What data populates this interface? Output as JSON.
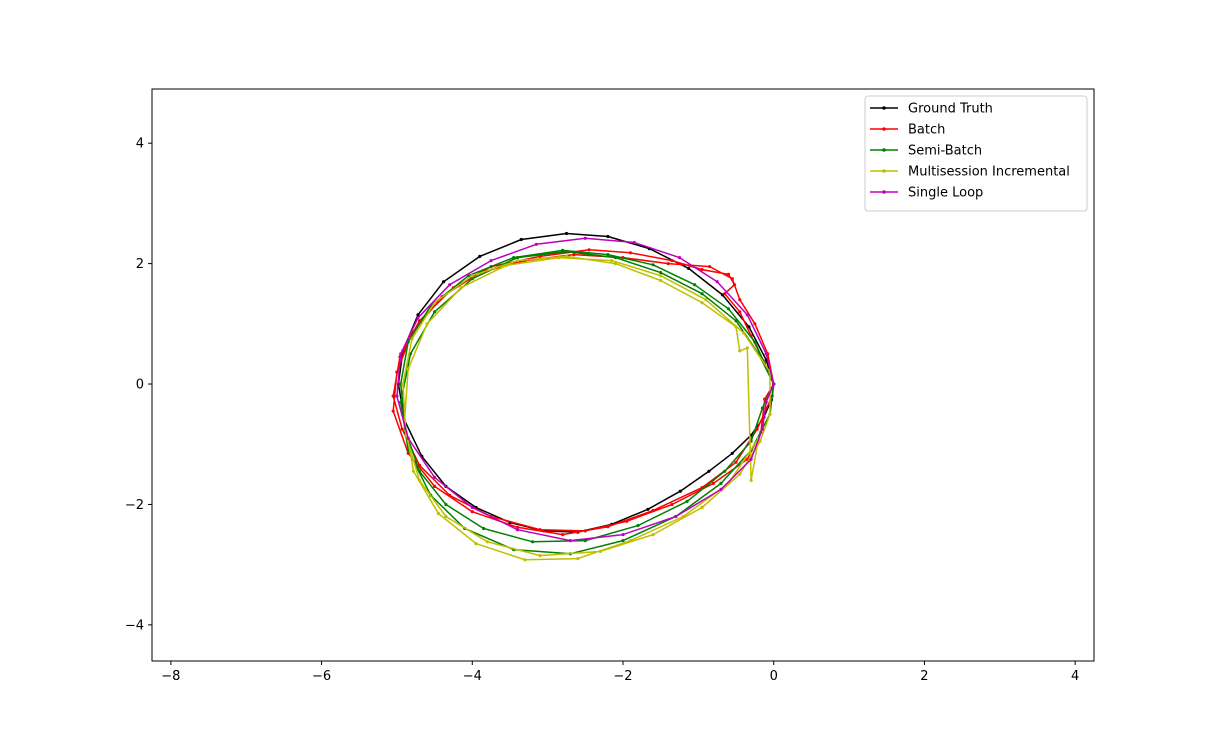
{
  "chart_data": {
    "type": "line",
    "title": "",
    "xlabel": "",
    "ylabel": "",
    "xlim": [
      -8.25,
      4.25
    ],
    "ylim": [
      -4.6,
      4.9
    ],
    "xticks": [
      -8,
      -6,
      -4,
      -2,
      0,
      2,
      4
    ],
    "yticks": [
      -4,
      -2,
      0,
      2,
      4
    ],
    "xtick_labels": [
      "−8",
      "−6",
      "−4",
      "−2",
      "0",
      "2",
      "4"
    ],
    "ytick_labels": [
      "−4",
      "−2",
      "0",
      "2",
      "4"
    ],
    "grid": false,
    "legend_position": "top-right",
    "series": [
      {
        "name": "Ground Truth",
        "color": "#000000",
        "marker": "dot",
        "points": [
          [
            0,
            0
          ],
          [
            -0.03,
            -0.26
          ],
          [
            -0.13,
            -0.55
          ],
          [
            -0.3,
            -0.85
          ],
          [
            -0.55,
            -1.15
          ],
          [
            -0.86,
            -1.45
          ],
          [
            -1.24,
            -1.78
          ],
          [
            -1.67,
            -2.08
          ],
          [
            -2.15,
            -2.33
          ],
          [
            -2.6,
            -2.46
          ],
          [
            -3.05,
            -2.44
          ],
          [
            -3.5,
            -2.3
          ],
          [
            -3.95,
            -2.05
          ],
          [
            -4.35,
            -1.7
          ],
          [
            -4.67,
            -1.2
          ],
          [
            -4.9,
            -0.6
          ],
          [
            -4.98,
            0
          ],
          [
            -4.92,
            0.55
          ],
          [
            -4.72,
            1.15
          ],
          [
            -4.38,
            1.7
          ],
          [
            -3.9,
            2.12
          ],
          [
            -3.35,
            2.4
          ],
          [
            -2.75,
            2.5
          ],
          [
            -2.2,
            2.45
          ],
          [
            -1.65,
            2.25
          ],
          [
            -1.13,
            1.92
          ],
          [
            -0.68,
            1.48
          ],
          [
            -0.33,
            0.95
          ],
          [
            -0.1,
            0.4
          ],
          [
            0,
            0
          ]
        ]
      },
      {
        "name": "Batch",
        "color": "#ff0000",
        "marker": "dot",
        "points": [
          [
            0,
            0
          ],
          [
            -0.12,
            -0.25
          ],
          [
            -0.17,
            -0.8
          ],
          [
            -0.35,
            -1.25
          ],
          [
            -0.8,
            -1.65
          ],
          [
            -1.35,
            -2.0
          ],
          [
            -1.95,
            -2.28
          ],
          [
            -2.5,
            -2.44
          ],
          [
            -3.1,
            -2.42
          ],
          [
            -3.75,
            -2.2
          ],
          [
            -4.3,
            -1.85
          ],
          [
            -4.7,
            -1.35
          ],
          [
            -4.93,
            -0.75
          ],
          [
            -5.05,
            -0.2
          ],
          [
            -4.96,
            0.45
          ],
          [
            -4.7,
            1.05
          ],
          [
            -4.25,
            1.6
          ],
          [
            -3.75,
            1.95
          ],
          [
            -3.1,
            2.12
          ],
          [
            -2.45,
            2.23
          ],
          [
            -1.9,
            2.18
          ],
          [
            -1.35,
            2.05
          ],
          [
            -0.95,
            1.9
          ],
          [
            -0.6,
            1.82
          ],
          [
            -0.52,
            1.65
          ],
          [
            -0.65,
            1.5
          ],
          [
            -0.45,
            1.2
          ],
          [
            -0.3,
            0.8
          ],
          [
            -0.12,
            0.35
          ],
          [
            0,
            0
          ],
          [
            -0.02,
            -0.2
          ],
          [
            -0.22,
            -0.75
          ],
          [
            -0.5,
            -1.3
          ],
          [
            -0.95,
            -1.72
          ],
          [
            -1.6,
            -2.1
          ],
          [
            -2.2,
            -2.37
          ],
          [
            -2.8,
            -2.5
          ],
          [
            -3.4,
            -2.38
          ],
          [
            -4.0,
            -2.12
          ],
          [
            -4.5,
            -1.7
          ],
          [
            -4.85,
            -1.15
          ],
          [
            -5.05,
            -0.45
          ],
          [
            -5.0,
            0.2
          ],
          [
            -4.8,
            0.85
          ],
          [
            -4.4,
            1.45
          ],
          [
            -3.9,
            1.85
          ],
          [
            -3.3,
            2.05
          ],
          [
            -2.65,
            2.15
          ],
          [
            -2.0,
            2.1
          ],
          [
            -1.4,
            2.0
          ],
          [
            -0.85,
            1.95
          ],
          [
            -0.55,
            1.75
          ],
          [
            -0.45,
            1.4
          ],
          [
            -0.25,
            1.0
          ],
          [
            -0.08,
            0.5
          ],
          [
            0,
            0
          ]
        ]
      },
      {
        "name": "Semi-Batch",
        "color": "#008000",
        "marker": "dot",
        "points": [
          [
            0,
            0
          ],
          [
            -0.15,
            -0.4
          ],
          [
            -0.3,
            -0.95
          ],
          [
            -0.65,
            -1.45
          ],
          [
            -1.15,
            -1.95
          ],
          [
            -1.8,
            -2.35
          ],
          [
            -2.5,
            -2.6
          ],
          [
            -3.2,
            -2.62
          ],
          [
            -3.85,
            -2.4
          ],
          [
            -4.35,
            -2.0
          ],
          [
            -4.7,
            -1.45
          ],
          [
            -4.88,
            -0.8
          ],
          [
            -4.95,
            0
          ],
          [
            -4.85,
            0.7
          ],
          [
            -4.55,
            1.3
          ],
          [
            -4.05,
            1.8
          ],
          [
            -3.45,
            2.1
          ],
          [
            -2.8,
            2.22
          ],
          [
            -2.2,
            2.15
          ],
          [
            -1.6,
            1.98
          ],
          [
            -1.05,
            1.65
          ],
          [
            -0.6,
            1.25
          ],
          [
            -0.25,
            0.7
          ],
          [
            0,
            0
          ],
          [
            -0.05,
            -0.5
          ],
          [
            -0.3,
            -1.1
          ],
          [
            -0.7,
            -1.65
          ],
          [
            -1.3,
            -2.2
          ],
          [
            -2.0,
            -2.6
          ],
          [
            -2.7,
            -2.82
          ],
          [
            -3.45,
            -2.75
          ],
          [
            -4.1,
            -2.4
          ],
          [
            -4.55,
            -1.85
          ],
          [
            -4.85,
            -1.1
          ],
          [
            -4.95,
            -0.3
          ],
          [
            -4.82,
            0.5
          ],
          [
            -4.5,
            1.2
          ],
          [
            -4.0,
            1.75
          ],
          [
            -3.4,
            2.1
          ],
          [
            -2.75,
            2.2
          ],
          [
            -2.1,
            2.1
          ],
          [
            -1.5,
            1.85
          ],
          [
            -0.95,
            1.5
          ],
          [
            -0.5,
            1.05
          ],
          [
            -0.2,
            0.5
          ],
          [
            0,
            0
          ]
        ]
      },
      {
        "name": "Multisession Incremental",
        "color": "#bfbf00",
        "marker": "dot",
        "points": [
          [
            -0.05,
            -0.5
          ],
          [
            -0.18,
            -0.95
          ],
          [
            -0.45,
            -1.5
          ],
          [
            -0.95,
            -2.05
          ],
          [
            -1.6,
            -2.5
          ],
          [
            -2.3,
            -2.78
          ],
          [
            -3.1,
            -2.85
          ],
          [
            -3.8,
            -2.62
          ],
          [
            -4.35,
            -2.2
          ],
          [
            -4.7,
            -1.6
          ],
          [
            -4.88,
            -0.85
          ],
          [
            -4.92,
            0
          ],
          [
            -4.8,
            0.75
          ],
          [
            -4.5,
            1.35
          ],
          [
            -4.0,
            1.8
          ],
          [
            -3.4,
            2.05
          ],
          [
            -2.75,
            2.12
          ],
          [
            -2.1,
            2.0
          ],
          [
            -1.5,
            1.72
          ],
          [
            -0.95,
            1.35
          ],
          [
            -0.5,
            0.95
          ],
          [
            -0.45,
            0.55
          ],
          [
            -0.35,
            0.6
          ],
          [
            -0.3,
            -1.6
          ],
          [
            -0.2,
            -0.9
          ],
          [
            -0.6,
            -1.65
          ],
          [
            -1.2,
            -2.2
          ],
          [
            -1.9,
            -2.6
          ],
          [
            -2.6,
            -2.9
          ],
          [
            -3.3,
            -2.92
          ],
          [
            -3.95,
            -2.65
          ],
          [
            -4.45,
            -2.15
          ],
          [
            -4.78,
            -1.45
          ],
          [
            -4.9,
            -0.6
          ],
          [
            -4.85,
            0.25
          ],
          [
            -4.6,
            1.0
          ],
          [
            -4.15,
            1.6
          ],
          [
            -3.55,
            1.97
          ],
          [
            -2.85,
            2.1
          ],
          [
            -2.15,
            2.05
          ],
          [
            -1.5,
            1.8
          ],
          [
            -0.9,
            1.4
          ],
          [
            -0.4,
            0.85
          ],
          [
            -0.05,
            0.2
          ],
          [
            -0.05,
            -0.5
          ]
        ]
      },
      {
        "name": "Single Loop",
        "color": "#bf00bf",
        "marker": "dot",
        "points": [
          [
            0,
            0
          ],
          [
            -0.1,
            -0.3
          ],
          [
            -0.15,
            -0.75
          ],
          [
            -0.3,
            -1.25
          ],
          [
            -0.7,
            -1.75
          ],
          [
            -1.3,
            -2.2
          ],
          [
            -2.0,
            -2.5
          ],
          [
            -2.7,
            -2.6
          ],
          [
            -3.4,
            -2.42
          ],
          [
            -4.0,
            -2.05
          ],
          [
            -4.5,
            -1.55
          ],
          [
            -4.85,
            -0.9
          ],
          [
            -5.0,
            -0.2
          ],
          [
            -4.95,
            0.5
          ],
          [
            -4.72,
            1.1
          ],
          [
            -4.3,
            1.65
          ],
          [
            -3.75,
            2.05
          ],
          [
            -3.15,
            2.32
          ],
          [
            -2.5,
            2.42
          ],
          [
            -1.85,
            2.35
          ],
          [
            -1.25,
            2.1
          ],
          [
            -0.75,
            1.7
          ],
          [
            -0.35,
            1.15
          ],
          [
            -0.1,
            0.5
          ],
          [
            0,
            0
          ]
        ]
      }
    ]
  }
}
